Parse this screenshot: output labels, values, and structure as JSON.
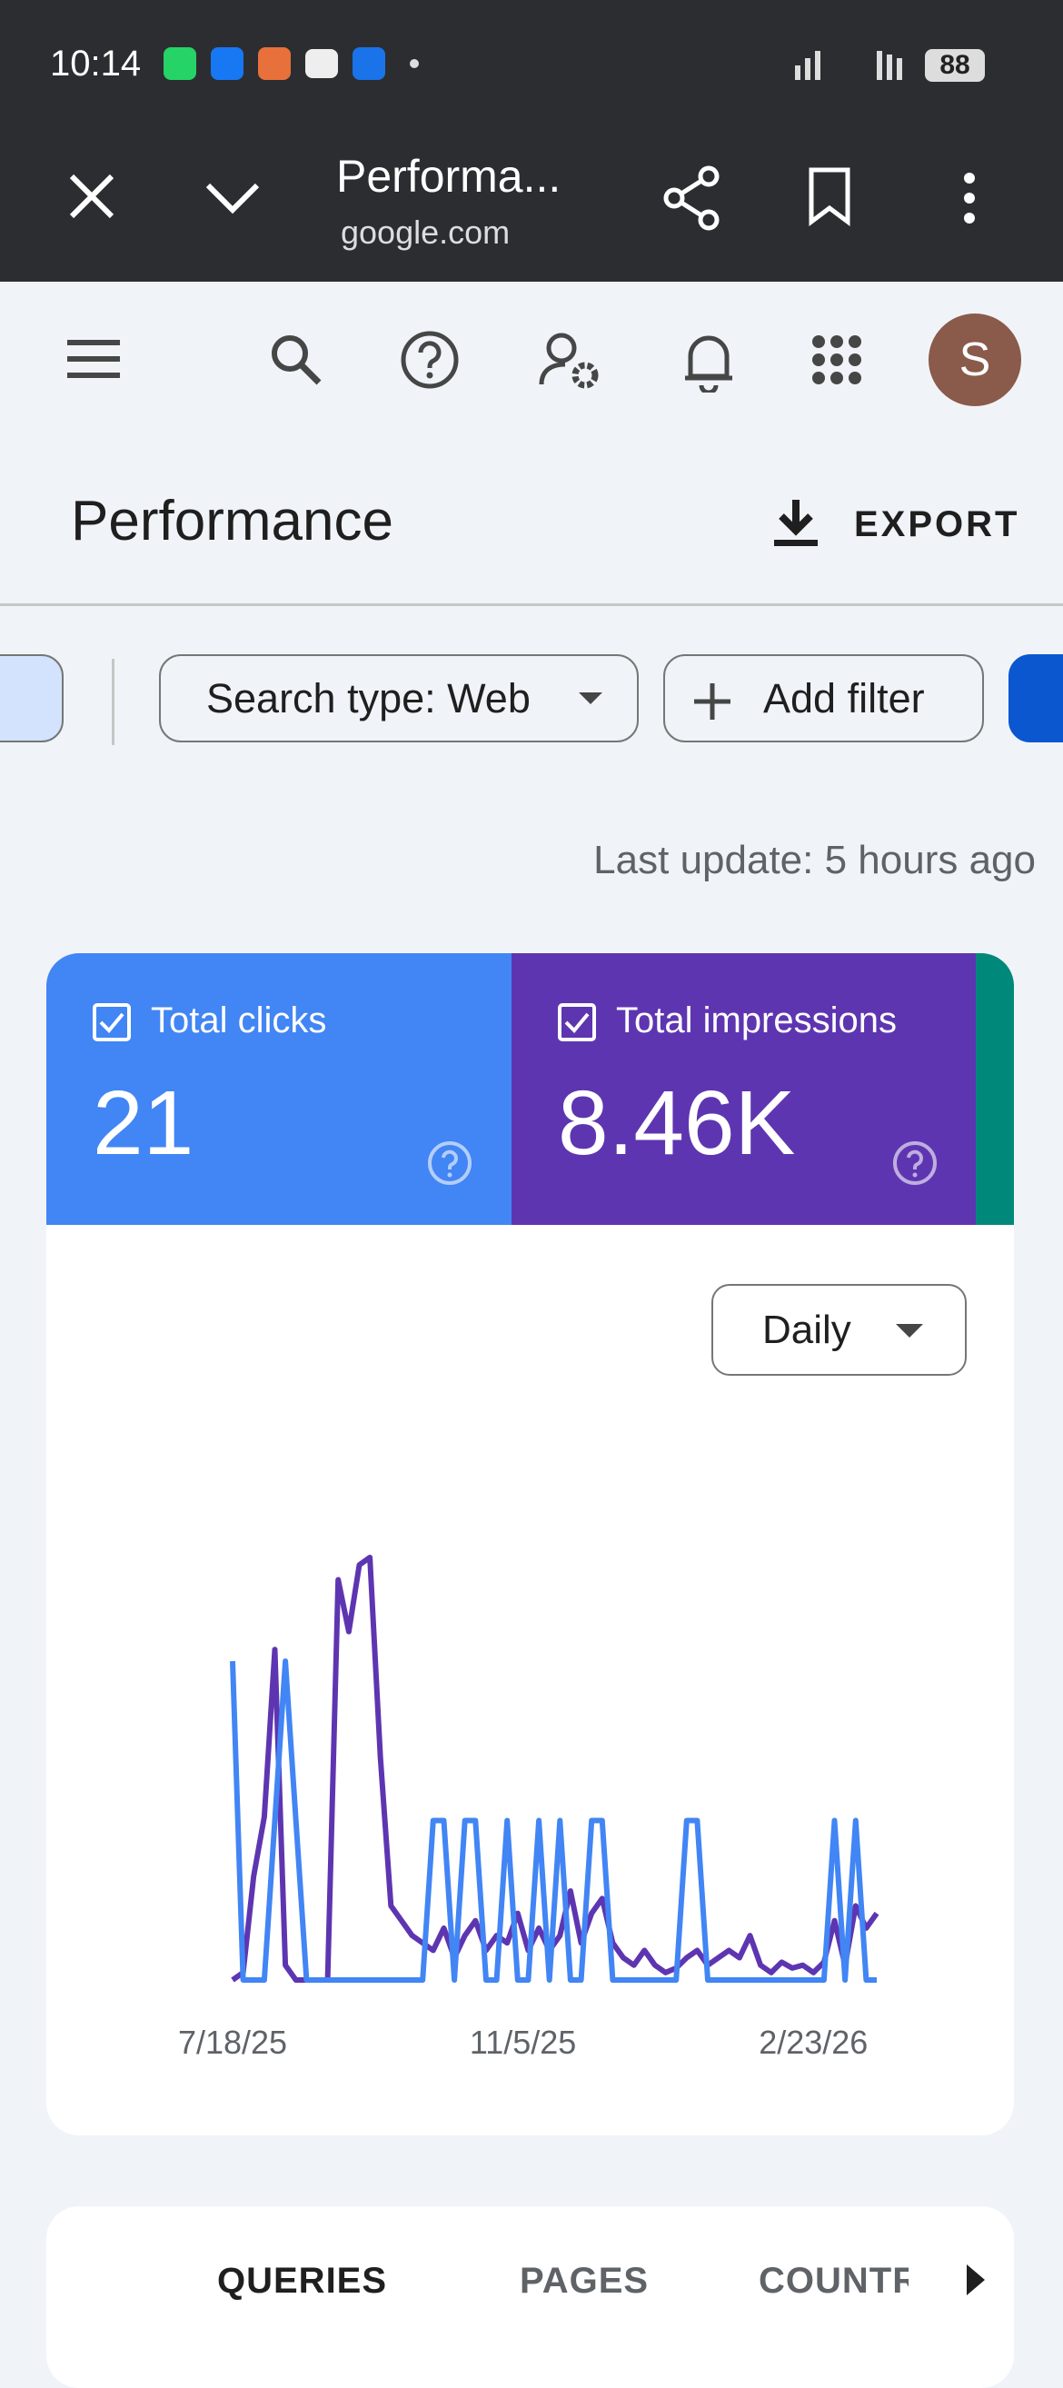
{
  "status_bar": {
    "time": "10:14",
    "battery": "88"
  },
  "browser": {
    "title": "Performa...",
    "url": "google.com"
  },
  "toolbar": {
    "avatar": "S"
  },
  "header": {
    "title": "Performance",
    "export": "EXPORT"
  },
  "filters": {
    "search_type": "Search type: Web",
    "add_filter": "Add filter"
  },
  "last_update": "Last update: 5 hours ago",
  "metrics": [
    {
      "label": "Total clicks",
      "value": "21",
      "color": "#4285f4"
    },
    {
      "label": "Total impressions",
      "value": "8.46K",
      "color": "#5e35b1"
    }
  ],
  "granularity": "Daily",
  "chart_data": {
    "type": "line",
    "xlim": [
      0,
      61
    ],
    "xticks": [
      {
        "value": 0,
        "label": "7/18/25"
      },
      {
        "value": 27.5,
        "label": "11/5/25"
      },
      {
        "value": 55,
        "label": "2/23/26"
      }
    ],
    "ylim": [
      0,
      2.65
    ],
    "y2lim": [
      0,
      285
    ],
    "series": [
      {
        "color": "#5e35b1",
        "axis": "y2",
        "values": [
          0,
          5,
          70,
          110,
          223,
          10,
          0,
          0,
          0,
          0,
          270,
          235,
          280,
          285,
          150,
          50,
          40,
          30,
          25,
          20,
          35,
          15,
          30,
          40,
          20,
          30,
          25,
          45,
          20,
          35,
          20,
          30,
          60,
          25,
          45,
          55,
          25,
          15,
          10,
          20,
          10,
          5,
          8,
          15,
          20,
          10,
          15,
          20,
          15,
          30,
          10,
          5,
          12,
          8,
          10,
          5,
          12,
          40,
          10,
          50,
          35,
          45
        ]
      },
      {
        "color": "#4285f4",
        "values": [
          2,
          0,
          0,
          0,
          1,
          2,
          1,
          0,
          0,
          0,
          0,
          0,
          0,
          0,
          0,
          0,
          0,
          0,
          0,
          1,
          1,
          0,
          1,
          1,
          0,
          0,
          1,
          0,
          0,
          1,
          0,
          1,
          0,
          0,
          1,
          1,
          0,
          0,
          0,
          0,
          0,
          0,
          0,
          1,
          1,
          0,
          0,
          0,
          0,
          0,
          0,
          0,
          0,
          0,
          0,
          0,
          0,
          1,
          0,
          1,
          0,
          0
        ]
      }
    ]
  },
  "tabs": [
    "QUERIES",
    "PAGES",
    "COUNTRIES"
  ]
}
